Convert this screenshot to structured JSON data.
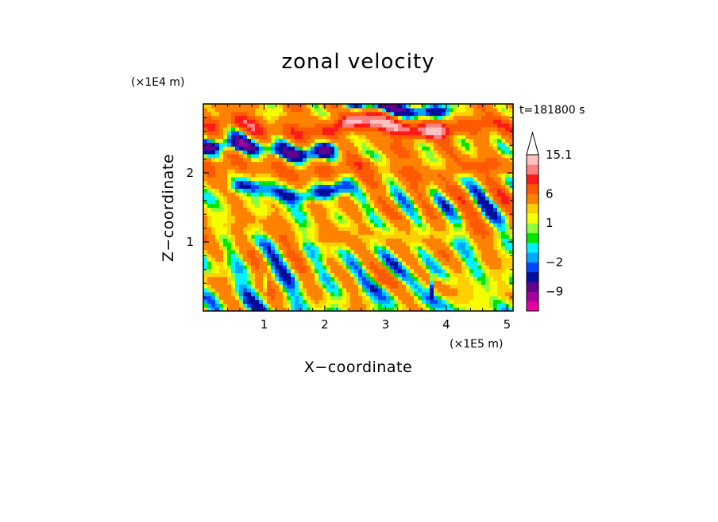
{
  "chart_data": {
    "type": "heatmap",
    "title": "zonal velocity",
    "time_label": "t=181800 s",
    "xlabel": "X−coordinate",
    "ylabel": "Z−coordinate",
    "x_multiplier": "(×1E5 m)",
    "y_multiplier": "(×1E4 m)",
    "x_range": [
      0,
      5.1
    ],
    "y_range": [
      0,
      3.0
    ],
    "x_ticks": [
      1,
      2,
      3,
      4,
      5
    ],
    "x_tick_labels": [
      "1",
      "2",
      "3",
      "4",
      "5"
    ],
    "y_ticks": [
      1,
      2
    ],
    "y_tick_labels": [
      "1",
      "2"
    ],
    "colorbar": {
      "colors": [
        "#e8009e",
        "#a0009e",
        "#5f008f",
        "#000e9c",
        "#0046ff",
        "#00a7ff",
        "#00f2ff",
        "#00e600",
        "#8cff3c",
        "#f6ff00",
        "#ffd000",
        "#ff8200",
        "#ff5a00",
        "#ff1a1a",
        "#ff8080",
        "#ffc0c0"
      ],
      "levels": [
        -15,
        -12,
        -9,
        -6,
        -3,
        -2,
        -1,
        0,
        0.5,
        1,
        2,
        3,
        6,
        9,
        12,
        15.1
      ],
      "tick_labels": [
        "15.1",
        "6",
        "1",
        "−2",
        "−9"
      ],
      "tick_values": [
        15.1,
        6,
        1,
        -2,
        -9
      ],
      "extend_top": true,
      "extend_top_color": "#ffffff"
    },
    "field_description_bands": [
      {
        "z": 2.35,
        "value": -8,
        "x_start": 0,
        "x_end": 2.0
      },
      {
        "z": 2.65,
        "value": 4,
        "x_start": 0,
        "x_end": 5.1
      },
      {
        "z": 2.05,
        "value": 3,
        "x_start": 0,
        "x_end": 5.1
      },
      {
        "z": 1.75,
        "value": -6,
        "x_start": 0.6,
        "x_end": 2.2
      },
      {
        "z": 2.7,
        "value": 9,
        "x_start": 2.4,
        "x_end": 3.8
      },
      {
        "z": 2.95,
        "value": -9,
        "x_start": 2.6,
        "x_end": 3.8
      },
      {
        "z": 1.1,
        "value": 1,
        "x_start": 0,
        "x_end": 5.1
      },
      {
        "z": 0.4,
        "value": 0.5,
        "x_start": 0,
        "x_end": 5.1
      }
    ]
  }
}
